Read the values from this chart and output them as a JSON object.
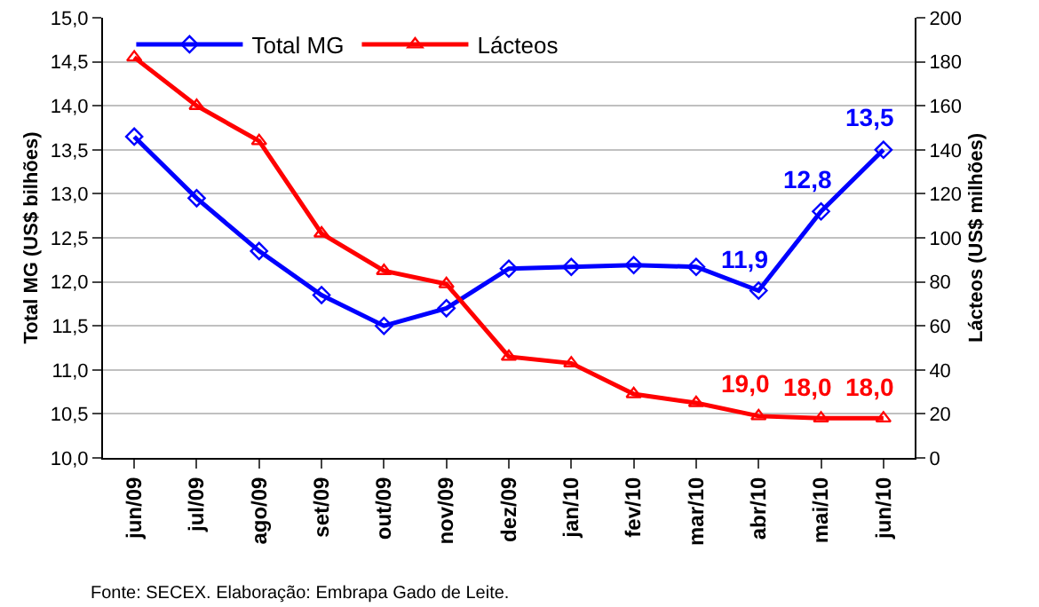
{
  "chart_data": {
    "type": "line",
    "categories": [
      "jun/09",
      "jul/09",
      "ago/09",
      "set/09",
      "out/09",
      "nov/09",
      "dez/09",
      "jan/10",
      "fev/10",
      "mar/10",
      "abr/10",
      "mai/10",
      "jun/10"
    ],
    "series": [
      {
        "name": "Total MG",
        "color": "#0000ff",
        "marker": "diamond",
        "values": [
          13.65,
          12.95,
          12.35,
          11.85,
          11.5,
          11.7,
          12.15,
          12.17,
          12.19,
          12.17,
          11.9,
          12.8,
          13.5
        ],
        "value_labels": [
          null,
          null,
          null,
          null,
          null,
          null,
          null,
          null,
          null,
          null,
          "11,9",
          "12,8",
          "13,5"
        ]
      },
      {
        "name": "Lácteos",
        "color": "#ff0000",
        "marker": "triangle",
        "axis": "y2",
        "values": [
          182,
          160,
          144,
          102,
          85,
          79,
          46,
          43,
          29,
          25,
          19,
          18,
          18
        ],
        "value_labels": [
          null,
          null,
          null,
          null,
          null,
          null,
          null,
          null,
          null,
          null,
          "19,0",
          "18,0",
          "18,0"
        ]
      }
    ],
    "ylabel": "Total MG (US$ bilhões)",
    "y2label": "Lácteos (US$ milhões)",
    "ylim": [
      10,
      15
    ],
    "yticks": [
      {
        "value": 10,
        "label": "10,0"
      },
      {
        "value": 10.5,
        "label": "10,5"
      },
      {
        "value": 11,
        "label": "11,0"
      },
      {
        "value": 11.5,
        "label": "11,5"
      },
      {
        "value": 12,
        "label": "12,0"
      },
      {
        "value": 12.5,
        "label": "12,5"
      },
      {
        "value": 13,
        "label": "13,0"
      },
      {
        "value": 13.5,
        "label": "13,5"
      },
      {
        "value": 14,
        "label": "14,0"
      },
      {
        "value": 14.5,
        "label": "14,5"
      },
      {
        "value": 15,
        "label": "15,0"
      }
    ],
    "y2lim": [
      0,
      200
    ],
    "y2ticks": [
      0,
      20,
      40,
      60,
      80,
      100,
      120,
      140,
      160,
      180,
      200
    ],
    "grid": "y",
    "legend": "top left",
    "annotations": [
      "Fonte: SECEX. Elaboração: Embrapa Gado de Leite."
    ]
  }
}
